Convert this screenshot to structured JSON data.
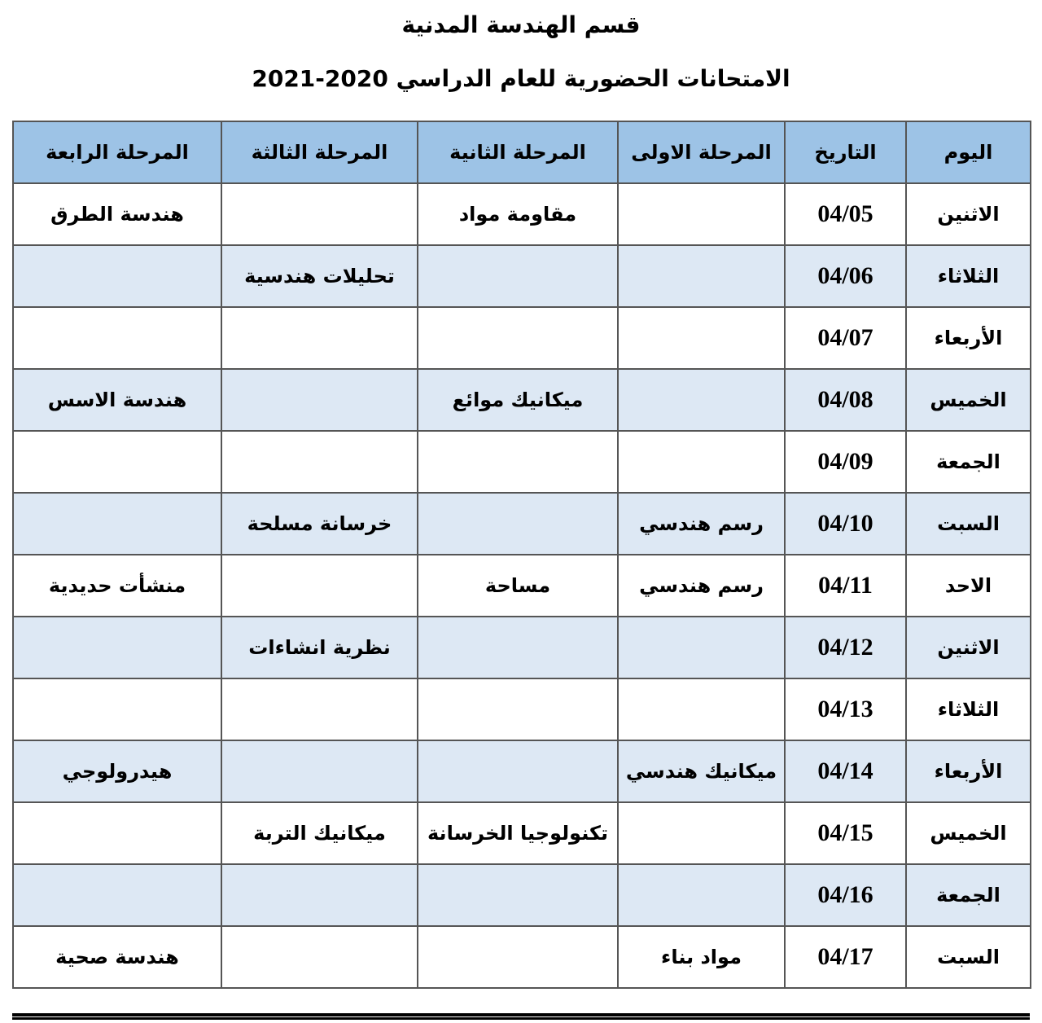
{
  "header": {
    "title": "قسم الهندسة المدنية",
    "subtitle": "الامتحانات الحضورية للعام الدراسي 2020-2021"
  },
  "table": {
    "columns": [
      "اليوم",
      "التاريخ",
      "المرحلة الاولى",
      "المرحلة الثانية",
      "المرحلة الثالثة",
      "المرحلة الرابعة"
    ],
    "rows": [
      [
        "الاثنين",
        "04/05",
        null,
        "مقاومة مواد",
        null,
        "هندسة الطرق"
      ],
      [
        "الثلاثاء",
        "04/06",
        null,
        null,
        "تحليلات هندسية",
        null
      ],
      [
        "الأربعاء",
        "04/07",
        null,
        null,
        null,
        null
      ],
      [
        "الخميس",
        "04/08",
        null,
        "ميكانيك موائع",
        null,
        "هندسة الاسس"
      ],
      [
        "الجمعة",
        "04/09",
        null,
        null,
        null,
        null
      ],
      [
        "السبت",
        "04/10",
        "رسم هندسي",
        null,
        "خرسانة مسلحة",
        null
      ],
      [
        "الاحد",
        "04/11",
        "رسم هندسي",
        "مساحة",
        null,
        "منشأت حديدية"
      ],
      [
        "الاثنين",
        "04/12",
        null,
        null,
        "نظرية انشاءات",
        null
      ],
      [
        "الثلاثاء",
        "04/13",
        null,
        null,
        null,
        null
      ],
      [
        "الأربعاء",
        "04/14",
        "ميكانيك هندسي",
        null,
        null,
        "هيدرولوجي"
      ],
      [
        "الخميس",
        "04/15",
        null,
        "تكنولوجيا الخرسانة",
        "ميكانيك التربة",
        null
      ],
      [
        "الجمعة",
        "04/16",
        null,
        null,
        null,
        null
      ],
      [
        "السبت",
        "04/17",
        "مواد بناء",
        null,
        null,
        "هندسة صحية"
      ]
    ]
  }
}
